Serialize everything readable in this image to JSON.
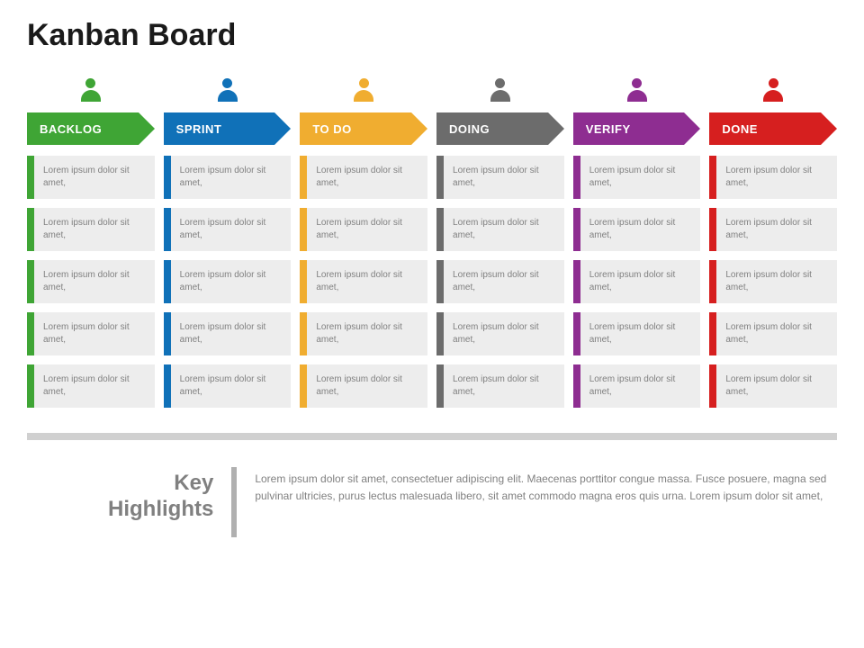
{
  "title": "Kanban Board",
  "card_background": "#ededed",
  "card_text_color": "#808080",
  "divider_color": "#d0d0d0",
  "background_color": "#ffffff",
  "title_color": "#1a1a1a",
  "title_fontsize": 34,
  "card_fontsize": 10,
  "header_fontsize": 13,
  "columns": [
    {
      "label": "BACKLOG",
      "color": "#3fa535",
      "cards": [
        "Lorem ipsum dolor sit amet,",
        "Lorem ipsum dolor sit amet,",
        "Lorem ipsum dolor sit amet,",
        "Lorem ipsum dolor sit amet,",
        "Lorem ipsum dolor sit amet,"
      ]
    },
    {
      "label": "SPRINT",
      "color": "#1071b8",
      "cards": [
        "Lorem ipsum dolor sit amet,",
        "Lorem ipsum dolor sit amet,",
        "Lorem ipsum dolor sit amet,",
        "Lorem ipsum dolor sit amet,",
        "Lorem ipsum dolor sit amet,"
      ]
    },
    {
      "label": "TO DO",
      "color": "#f0ad30",
      "cards": [
        "Lorem ipsum dolor sit amet,",
        "Lorem ipsum dolor sit amet,",
        "Lorem ipsum dolor sit amet,",
        "Lorem ipsum dolor sit amet,",
        "Lorem ipsum dolor sit amet,"
      ]
    },
    {
      "label": "DOING",
      "color": "#6c6c6c",
      "cards": [
        "Lorem ipsum dolor sit amet,",
        "Lorem ipsum dolor sit amet,",
        "Lorem ipsum dolor sit amet,",
        "Lorem ipsum dolor sit amet,",
        "Lorem ipsum dolor sit amet,"
      ]
    },
    {
      "label": "VERIFY",
      "color": "#8e2d91",
      "cards": [
        "Lorem ipsum dolor sit amet,",
        "Lorem ipsum dolor sit amet,",
        "Lorem ipsum dolor sit amet,",
        "Lorem ipsum dolor sit amet,",
        "Lorem ipsum dolor sit amet,"
      ]
    },
    {
      "label": "DONE",
      "color": "#d61f1f",
      "cards": [
        "Lorem ipsum dolor sit amet,",
        "Lorem ipsum dolor sit amet,",
        "Lorem ipsum dolor sit amet,",
        "Lorem ipsum dolor sit amet,",
        "Lorem ipsum dolor sit amet,"
      ]
    }
  ],
  "highlights": {
    "label_line1": "Key",
    "label_line2": "Highlights",
    "label_color": "#808080",
    "label_fontsize": 24,
    "bar_color": "#b0b0b0",
    "text": "Lorem ipsum dolor sit amet, consectetuer adipiscing elit. Maecenas porttitor congue massa. Fusce posuere, magna sed pulvinar ultricies, purus lectus malesuada libero, sit amet commodo magna eros quis urna. Lorem ipsum dolor sit amet,",
    "text_color": "#808080",
    "text_fontsize": 12
  }
}
